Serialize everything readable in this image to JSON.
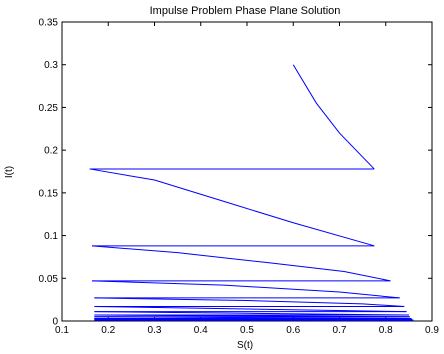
{
  "chart_data": {
    "type": "line",
    "title": "Impulse Problem Phase Plane Solution",
    "xlabel": "S(t)",
    "ylabel": "I(t)",
    "xlim": [
      0.1,
      0.9
    ],
    "ylim": [
      0,
      0.35
    ],
    "xticks": [
      "0.1",
      "0.2",
      "0.3",
      "0.4",
      "0.5",
      "0.6",
      "0.7",
      "0.8",
      "0.9"
    ],
    "yticks": [
      "0",
      "0.05",
      "0.1",
      "0.15",
      "0.2",
      "0.25",
      "0.3",
      "0.35"
    ],
    "grid": false,
    "line_color": "#0000ff",
    "series": [
      {
        "x": [
          0.6,
          0.65,
          0.7,
          0.775
        ],
        "y": [
          0.3,
          0.255,
          0.22,
          0.178
        ]
      },
      {
        "x": [
          0.775,
          0.16
        ],
        "y": [
          0.178,
          0.178
        ]
      },
      {
        "x": [
          0.16,
          0.3,
          0.45,
          0.6,
          0.775
        ],
        "y": [
          0.178,
          0.165,
          0.14,
          0.115,
          0.088
        ]
      },
      {
        "x": [
          0.775,
          0.165
        ],
        "y": [
          0.088,
          0.088
        ]
      },
      {
        "x": [
          0.165,
          0.35,
          0.55,
          0.71,
          0.81
        ],
        "y": [
          0.088,
          0.08,
          0.068,
          0.058,
          0.047
        ]
      },
      {
        "x": [
          0.81,
          0.165
        ],
        "y": [
          0.047,
          0.047
        ]
      },
      {
        "x": [
          0.165,
          0.45,
          0.7,
          0.83
        ],
        "y": [
          0.047,
          0.042,
          0.034,
          0.027
        ]
      },
      {
        "x": [
          0.83,
          0.17
        ],
        "y": [
          0.027,
          0.027
        ]
      },
      {
        "x": [
          0.17,
          0.5,
          0.75,
          0.84
        ],
        "y": [
          0.027,
          0.024,
          0.02,
          0.017
        ]
      },
      {
        "x": [
          0.84,
          0.17
        ],
        "y": [
          0.017,
          0.017
        ]
      },
      {
        "x": [
          0.17,
          0.5,
          0.845
        ],
        "y": [
          0.017,
          0.014,
          0.011
        ]
      },
      {
        "x": [
          0.845,
          0.17
        ],
        "y": [
          0.011,
          0.011
        ]
      },
      {
        "x": [
          0.17,
          0.5,
          0.85
        ],
        "y": [
          0.011,
          0.009,
          0.007
        ]
      },
      {
        "x": [
          0.85,
          0.17
        ],
        "y": [
          0.007,
          0.007
        ]
      },
      {
        "x": [
          0.17,
          0.5,
          0.852
        ],
        "y": [
          0.007,
          0.006,
          0.005
        ]
      },
      {
        "x": [
          0.852,
          0.17
        ],
        "y": [
          0.005,
          0.005
        ]
      },
      {
        "x": [
          0.17,
          0.5,
          0.855
        ],
        "y": [
          0.005,
          0.004,
          0.003
        ]
      },
      {
        "x": [
          0.855,
          0.17
        ],
        "y": [
          0.003,
          0.003
        ]
      },
      {
        "x": [
          0.17,
          0.5,
          0.857
        ],
        "y": [
          0.003,
          0.0025,
          0.002
        ]
      },
      {
        "x": [
          0.857,
          0.17
        ],
        "y": [
          0.002,
          0.002
        ]
      },
      {
        "x": [
          0.17,
          0.5,
          0.86
        ],
        "y": [
          0.002,
          0.0015,
          0.001
        ]
      },
      {
        "x": [
          0.86,
          0.17
        ],
        "y": [
          0.001,
          0.001
        ]
      },
      {
        "x": [
          0.17,
          0.86
        ],
        "y": [
          0.001,
          0.0005
        ]
      }
    ]
  }
}
